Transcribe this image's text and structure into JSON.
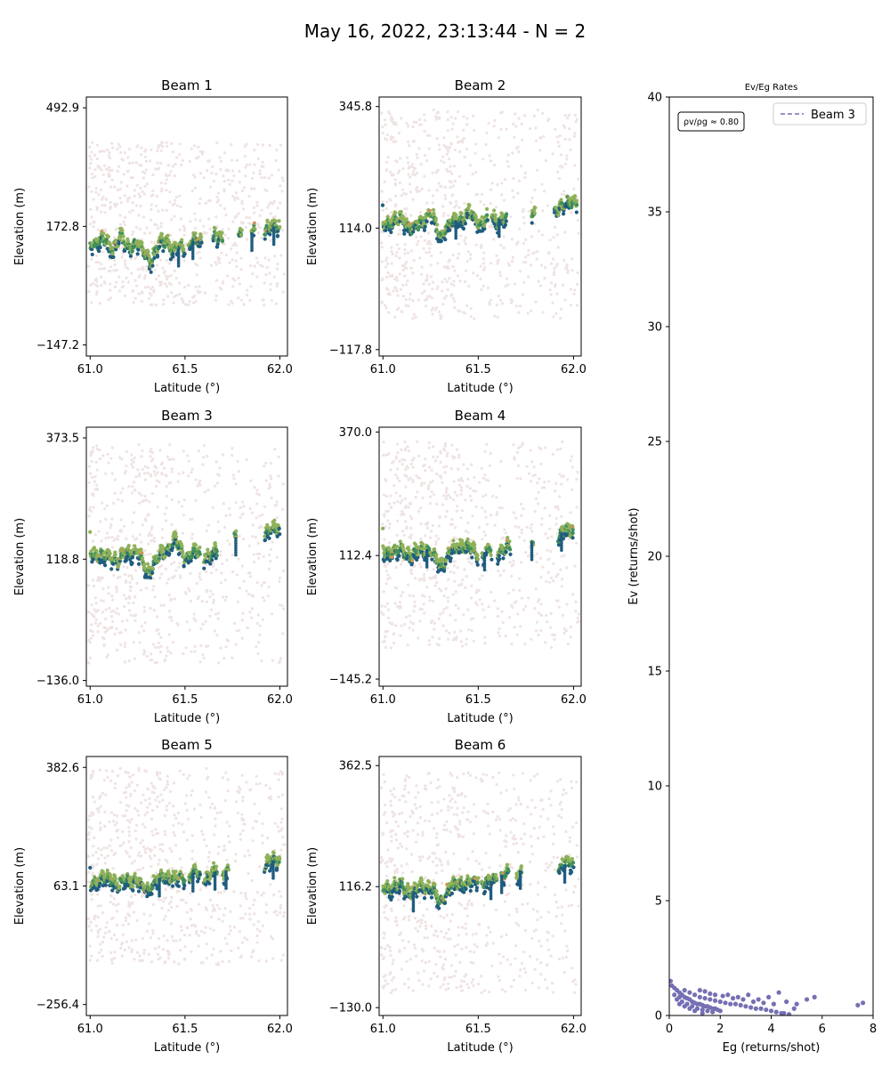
{
  "figure": {
    "title": "May 16, 2022, 23:13:44 - N = 2"
  },
  "colors": {
    "noise": "#efe3e3",
    "signal_dark": "#1f5c7f",
    "signal_mid": "#3f8f5a",
    "signal_light": "#8fb15a",
    "signal_orange": "#c8965a",
    "rate": "#7570b3"
  },
  "chart_data": [
    {
      "type": "scatter",
      "title": "Beam 1",
      "xlabel": "Latitude (°)",
      "ylabel": "Elevation (m)",
      "xlim": [
        60.98,
        62.04
      ],
      "ylim": [
        -177.0,
        522.0
      ],
      "xticks": [
        61.0,
        61.5,
        62.0
      ],
      "xtick_labels": [
        "61.0",
        "61.5",
        "62.0"
      ],
      "yticks": [
        -147.2,
        172.8,
        492.9
      ],
      "ytick_labels": [
        "−147.2",
        "172.8",
        "492.9"
      ],
      "ground_profile": [
        [
          61.0,
          130
        ],
        [
          61.04,
          122
        ],
        [
          61.08,
          135
        ],
        [
          61.12,
          112
        ],
        [
          61.16,
          140
        ],
        [
          61.2,
          118
        ],
        [
          61.24,
          125
        ],
        [
          61.28,
          105
        ],
        [
          61.32,
          82
        ],
        [
          61.36,
          115
        ],
        [
          61.4,
          138
        ],
        [
          61.44,
          102
        ],
        [
          61.5,
          120
        ],
        [
          61.55,
          132
        ],
        [
          61.6,
          125
        ],
        [
          61.65,
          137
        ],
        [
          61.7,
          142
        ],
        [
          61.75,
          145
        ],
        [
          61.8,
          150
        ],
        [
          61.85,
          152
        ],
        [
          61.9,
          160
        ],
        [
          61.95,
          165
        ],
        [
          62.0,
          175
        ]
      ],
      "signal_segments": [
        [
          61.0,
          61.5
        ],
        [
          61.52,
          61.59
        ],
        [
          61.65,
          61.7
        ],
        [
          61.78,
          61.8
        ],
        [
          61.85,
          61.87
        ],
        [
          61.92,
          62.0
        ]
      ],
      "noise_band": [
        -40,
        400
      ]
    },
    {
      "type": "scatter",
      "title": "Beam 2",
      "xlabel": "Latitude (°)",
      "ylabel": "Elevation (m)",
      "xlim": [
        60.98,
        62.04
      ],
      "ylim": [
        -130.0,
        364.0
      ],
      "xticks": [
        61.0,
        61.5,
        62.0
      ],
      "xtick_labels": [
        "61.0",
        "61.5",
        "62.0"
      ],
      "yticks": [
        -117.8,
        114.0,
        345.8
      ],
      "ytick_labels": [
        "−117.8",
        "114.0",
        "345.8"
      ],
      "ground_profile": [
        [
          61.0,
          128
        ],
        [
          61.05,
          118
        ],
        [
          61.1,
          135
        ],
        [
          61.15,
          108
        ],
        [
          61.2,
          125
        ],
        [
          61.25,
          140
        ],
        [
          61.3,
          100
        ],
        [
          61.35,
          118
        ],
        [
          61.4,
          130
        ],
        [
          61.45,
          142
        ],
        [
          61.5,
          120
        ],
        [
          61.55,
          132
        ],
        [
          61.6,
          128
        ],
        [
          61.65,
          135
        ],
        [
          61.7,
          138
        ],
        [
          61.8,
          140
        ],
        [
          61.85,
          148
        ],
        [
          61.9,
          150
        ],
        [
          61.95,
          155
        ],
        [
          62.0,
          165
        ]
      ],
      "signal_segments": [
        [
          61.0,
          61.55
        ],
        [
          61.57,
          61.65
        ],
        [
          61.78,
          61.8
        ],
        [
          61.9,
          62.02
        ]
      ],
      "noise_band": [
        -60,
        340
      ]
    },
    {
      "type": "scatter",
      "title": "Beam 3",
      "xlabel": "Latitude (°)",
      "ylabel": "Elevation (m)",
      "xlim": [
        60.98,
        62.04
      ],
      "ylim": [
        -148.0,
        396.0
      ],
      "xticks": [
        61.0,
        61.5,
        62.0
      ],
      "xtick_labels": [
        "61.0",
        "61.5",
        "62.0"
      ],
      "yticks": [
        -136.0,
        118.8,
        373.5
      ],
      "ytick_labels": [
        "−136.0",
        "118.8",
        "373.5"
      ],
      "ground_profile": [
        [
          61.0,
          140
        ],
        [
          61.05,
          118
        ],
        [
          61.1,
          128
        ],
        [
          61.15,
          110
        ],
        [
          61.2,
          138
        ],
        [
          61.25,
          128
        ],
        [
          61.3,
          95
        ],
        [
          61.35,
          112
        ],
        [
          61.4,
          140
        ],
        [
          61.45,
          155
        ],
        [
          61.5,
          122
        ],
        [
          61.55,
          132
        ],
        [
          61.6,
          125
        ],
        [
          61.65,
          130
        ],
        [
          61.7,
          135
        ],
        [
          61.75,
          160
        ],
        [
          61.8,
          165
        ],
        [
          61.9,
          170
        ],
        [
          61.95,
          175
        ],
        [
          62.0,
          185
        ]
      ],
      "signal_segments": [
        [
          61.0,
          61.58
        ],
        [
          61.6,
          61.67
        ],
        [
          61.76,
          61.77
        ],
        [
          61.92,
          62.0
        ]
      ],
      "noise_band": [
        -100,
        360
      ]
    },
    {
      "type": "scatter",
      "title": "Beam 4",
      "xlabel": "Latitude (°)",
      "ylabel": "Elevation (m)",
      "xlim": [
        60.98,
        62.04
      ],
      "ylim": [
        -160.0,
        380.0
      ],
      "xticks": [
        61.0,
        61.5,
        62.0
      ],
      "xtick_labels": [
        "61.0",
        "61.5",
        "62.0"
      ],
      "yticks": [
        -145.2,
        112.4,
        370.0
      ],
      "ytick_labels": [
        "−145.2",
        "112.4",
        "370.0"
      ],
      "ground_profile": [
        [
          61.0,
          125
        ],
        [
          61.05,
          112
        ],
        [
          61.1,
          128
        ],
        [
          61.15,
          105
        ],
        [
          61.2,
          130
        ],
        [
          61.25,
          118
        ],
        [
          61.3,
          92
        ],
        [
          61.35,
          115
        ],
        [
          61.4,
          135
        ],
        [
          61.45,
          128
        ],
        [
          61.5,
          110
        ],
        [
          61.55,
          120
        ],
        [
          61.6,
          118
        ],
        [
          61.65,
          125
        ],
        [
          61.7,
          130
        ],
        [
          61.8,
          140
        ],
        [
          61.85,
          145
        ],
        [
          61.9,
          150
        ],
        [
          61.95,
          160
        ],
        [
          62.0,
          165
        ]
      ],
      "signal_segments": [
        [
          61.0,
          61.5
        ],
        [
          61.52,
          61.57
        ],
        [
          61.6,
          61.67
        ],
        [
          61.78,
          61.79
        ],
        [
          61.92,
          62.0
        ]
      ],
      "noise_band": [
        -80,
        350
      ]
    },
    {
      "type": "scatter",
      "title": "Beam 5",
      "xlabel": "Latitude (°)",
      "ylabel": "Elevation (m)",
      "xlim": [
        60.98,
        62.04
      ],
      "ylim": [
        -286.0,
        412.0
      ],
      "xticks": [
        61.0,
        61.5,
        62.0
      ],
      "xtick_labels": [
        "61.0",
        "61.5",
        "62.0"
      ],
      "yticks": [
        -256.4,
        63.1,
        382.6
      ],
      "ytick_labels": [
        "−256.4",
        "63.1",
        "382.6"
      ],
      "ground_profile": [
        [
          61.0,
          80
        ],
        [
          61.05,
          70
        ],
        [
          61.1,
          90
        ],
        [
          61.15,
          60
        ],
        [
          61.2,
          82
        ],
        [
          61.25,
          70
        ],
        [
          61.3,
          55
        ],
        [
          61.35,
          75
        ],
        [
          61.4,
          92
        ],
        [
          61.45,
          78
        ],
        [
          61.5,
          85
        ],
        [
          61.55,
          95
        ],
        [
          61.6,
          88
        ],
        [
          61.65,
          98
        ],
        [
          61.7,
          100
        ],
        [
          61.8,
          105
        ],
        [
          61.85,
          110
        ],
        [
          61.9,
          118
        ],
        [
          61.95,
          125
        ],
        [
          62.0,
          135
        ]
      ],
      "signal_segments": [
        [
          61.0,
          61.5
        ],
        [
          61.52,
          61.58
        ],
        [
          61.6,
          61.67
        ],
        [
          61.7,
          61.73
        ],
        [
          61.92,
          62.0
        ]
      ],
      "noise_band": [
        -150,
        380
      ]
    },
    {
      "type": "scatter",
      "title": "Beam 6",
      "xlabel": "Latitude (°)",
      "ylabel": "Elevation (m)",
      "xlim": [
        60.98,
        62.04
      ],
      "ylim": [
        -146.0,
        381.0
      ],
      "xticks": [
        61.0,
        61.5,
        62.0
      ],
      "xtick_labels": [
        "61.0",
        "61.5",
        "62.0"
      ],
      "yticks": [
        -130.0,
        116.2,
        362.5
      ],
      "ytick_labels": [
        "−130.0",
        "116.2",
        "362.5"
      ],
      "ground_profile": [
        [
          61.0,
          118
        ],
        [
          61.05,
          108
        ],
        [
          61.1,
          125
        ],
        [
          61.15,
          95
        ],
        [
          61.2,
          120
        ],
        [
          61.25,
          110
        ],
        [
          61.3,
          88
        ],
        [
          61.35,
          108
        ],
        [
          61.4,
          125
        ],
        [
          61.45,
          118
        ],
        [
          61.5,
          132
        ],
        [
          61.55,
          120
        ],
        [
          61.6,
          135
        ],
        [
          61.65,
          140
        ],
        [
          61.7,
          145
        ],
        [
          61.8,
          150
        ],
        [
          61.9,
          152
        ],
        [
          61.95,
          158
        ],
        [
          62.0,
          165
        ]
      ],
      "signal_segments": [
        [
          61.0,
          61.5
        ],
        [
          61.52,
          61.6
        ],
        [
          61.62,
          61.66
        ],
        [
          61.7,
          61.73
        ],
        [
          61.92,
          62.0
        ]
      ],
      "noise_band": [
        -100,
        350
      ]
    },
    {
      "type": "scatter",
      "title": "Ev/Eg Rates",
      "xlabel": "Eg (returns/shot)",
      "ylabel": "Ev (returns/shot)",
      "xlim": [
        0,
        8
      ],
      "ylim": [
        0,
        40
      ],
      "xticks": [
        0,
        2,
        4,
        6,
        8
      ],
      "xtick_labels": [
        "0",
        "2",
        "4",
        "6",
        "8"
      ],
      "yticks": [
        0,
        5,
        10,
        15,
        20,
        25,
        30,
        35,
        40
      ],
      "ytick_labels": [
        "0",
        "5",
        "10",
        "15",
        "20",
        "25",
        "30",
        "35",
        "40"
      ],
      "legend": {
        "label": "Beam 3",
        "placement": "top-right"
      },
      "annotation": "ρv/ρg ≈ 0.80",
      "rate_points": [
        [
          0.05,
          1.5
        ],
        [
          0.1,
          1.3
        ],
        [
          0.2,
          1.2
        ],
        [
          0.3,
          1.1
        ],
        [
          0.4,
          1.0
        ],
        [
          0.5,
          0.9
        ],
        [
          0.6,
          0.8
        ],
        [
          0.7,
          0.75
        ],
        [
          0.8,
          0.7
        ],
        [
          0.9,
          0.6
        ],
        [
          1.0,
          0.55
        ],
        [
          1.1,
          0.5
        ],
        [
          1.2,
          0.5
        ],
        [
          1.3,
          0.45
        ],
        [
          1.4,
          0.4
        ],
        [
          1.5,
          0.4
        ],
        [
          1.6,
          0.35
        ],
        [
          1.7,
          0.3
        ],
        [
          1.8,
          0.3
        ],
        [
          1.9,
          0.25
        ],
        [
          2.0,
          0.2
        ],
        [
          0.3,
          0.7
        ],
        [
          0.5,
          0.6
        ],
        [
          0.7,
          0.5
        ],
        [
          0.9,
          0.4
        ],
        [
          1.1,
          0.3
        ],
        [
          1.3,
          0.25
        ],
        [
          1.5,
          0.2
        ],
        [
          1.7,
          0.15
        ],
        [
          0.6,
          1.1
        ],
        [
          0.8,
          1.0
        ],
        [
          1.0,
          0.9
        ],
        [
          1.2,
          0.8
        ],
        [
          1.4,
          0.75
        ],
        [
          1.6,
          0.7
        ],
        [
          1.8,
          0.65
        ],
        [
          2.0,
          0.6
        ],
        [
          2.2,
          0.55
        ],
        [
          2.4,
          0.5
        ],
        [
          2.6,
          0.5
        ],
        [
          2.8,
          0.45
        ],
        [
          3.0,
          0.4
        ],
        [
          3.2,
          0.35
        ],
        [
          3.4,
          0.3
        ],
        [
          3.6,
          0.3
        ],
        [
          3.8,
          0.25
        ],
        [
          4.0,
          0.2
        ],
        [
          4.2,
          0.15
        ],
        [
          4.4,
          0.1
        ],
        [
          2.3,
          0.9
        ],
        [
          2.7,
          0.8
        ],
        [
          3.1,
          0.9
        ],
        [
          3.5,
          0.7
        ],
        [
          3.9,
          0.8
        ],
        [
          4.3,
          1.0
        ],
        [
          4.6,
          0.6
        ],
        [
          5.0,
          0.5
        ],
        [
          5.4,
          0.7
        ],
        [
          5.7,
          0.8
        ],
        [
          4.5,
          0.1
        ],
        [
          4.7,
          0.05
        ],
        [
          7.4,
          0.45
        ],
        [
          7.6,
          0.55
        ],
        [
          1.2,
          1.1
        ],
        [
          1.4,
          1.05
        ],
        [
          1.6,
          0.95
        ],
        [
          1.8,
          0.9
        ],
        [
          2.1,
          0.85
        ],
        [
          2.5,
          0.75
        ],
        [
          2.9,
          0.7
        ],
        [
          3.3,
          0.6
        ],
        [
          3.7,
          0.55
        ],
        [
          4.1,
          0.5
        ],
        [
          4.9,
          0.3
        ],
        [
          0.2,
          0.9
        ],
        [
          0.4,
          0.8
        ],
        [
          0.4,
          0.5
        ],
        [
          0.6,
          0.4
        ],
        [
          0.8,
          0.3
        ],
        [
          1.0,
          0.2
        ],
        [
          1.3,
          0.1
        ]
      ]
    }
  ]
}
